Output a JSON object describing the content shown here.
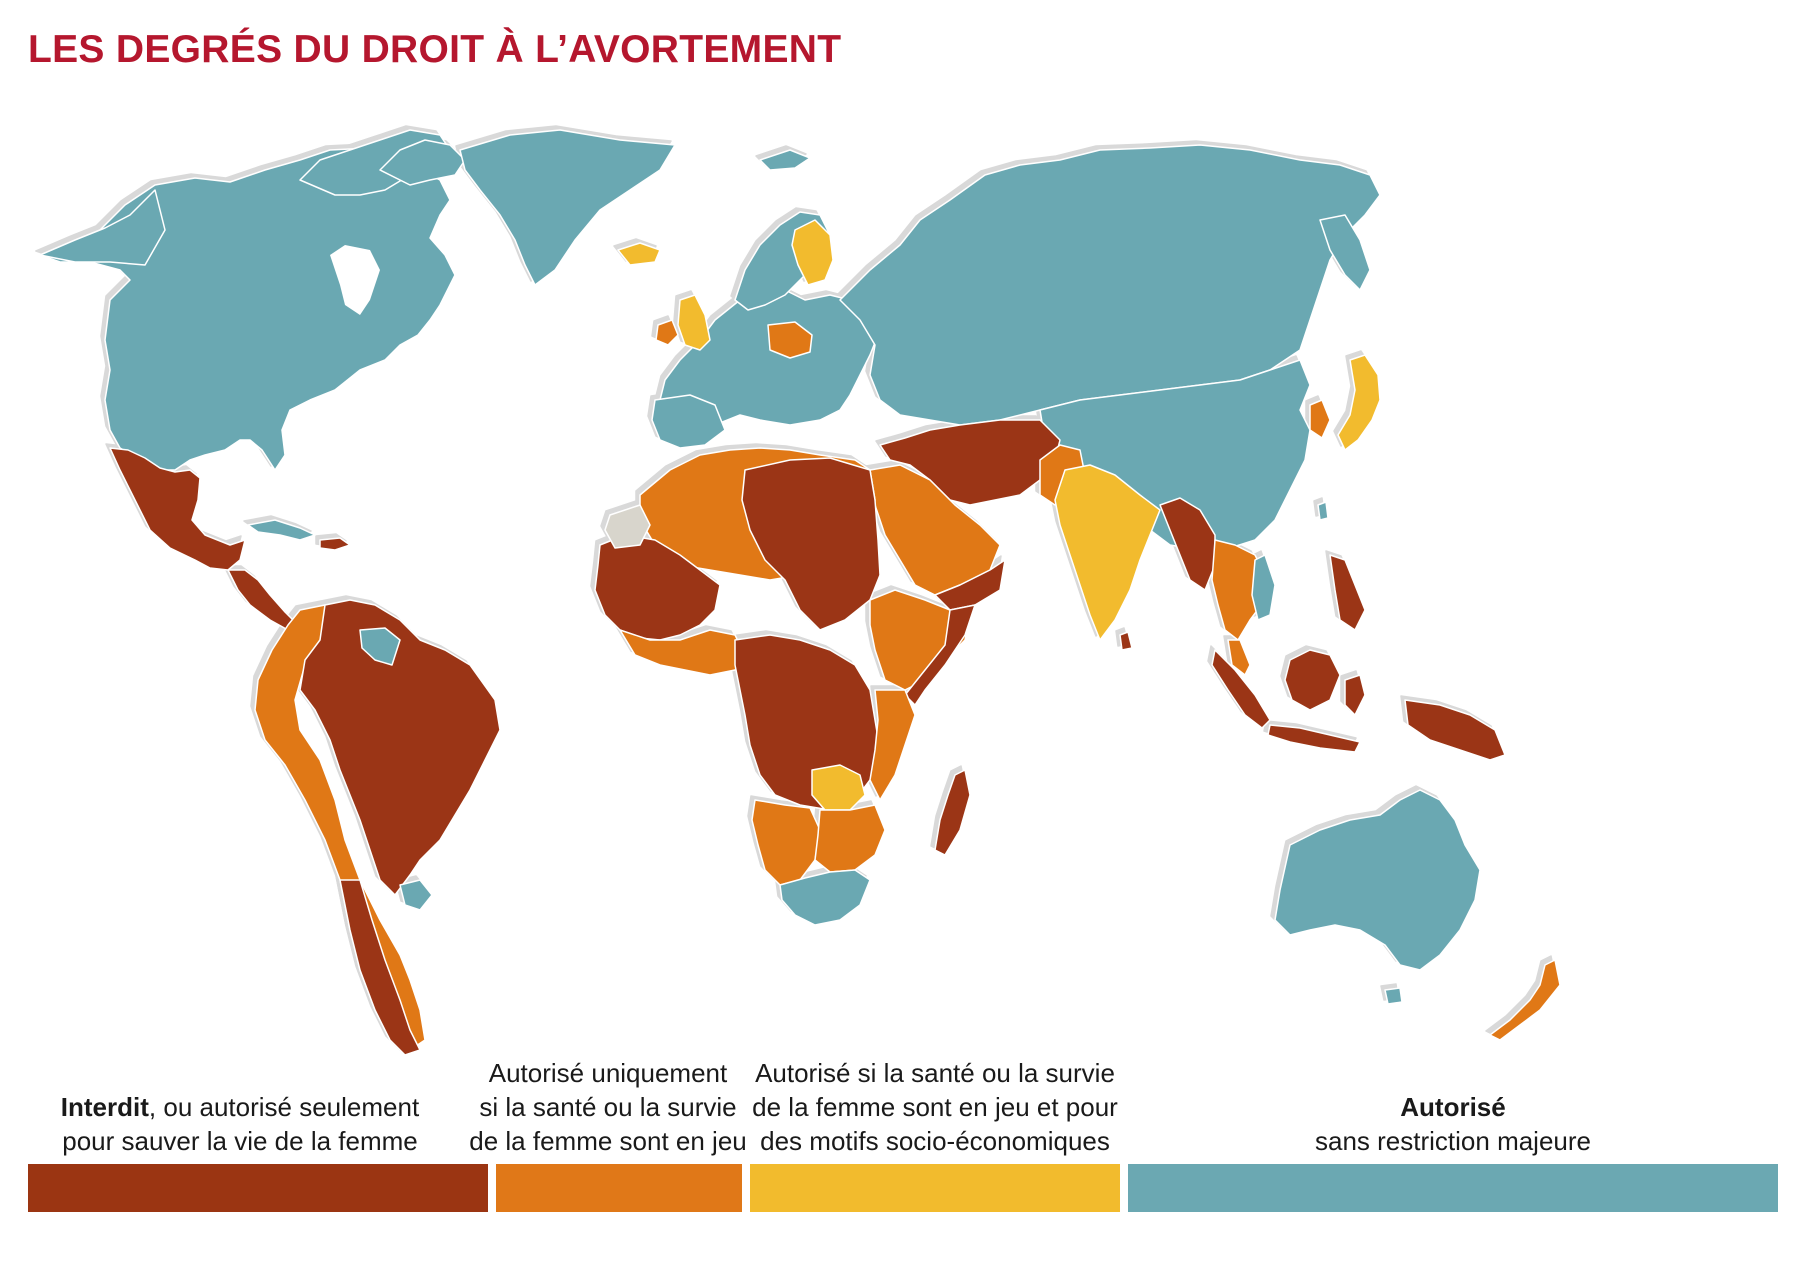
{
  "title": "LES DEGRÉS DU DROIT À L’AVORTEMENT",
  "legend": [
    {
      "id": "interdit",
      "bold": "Interdit",
      "text_after_bold": ", ou autorisé seulement",
      "line2": "pour sauver la vie de la femme",
      "color": "#9b3512"
    },
    {
      "id": "sante",
      "line1": "Autorisé uniquement",
      "line2": "si la santé ou la survie",
      "line3": "de la femme sont en jeu",
      "color": "#e07818"
    },
    {
      "id": "socio",
      "line1": "Autorisé si la santé ou la survie",
      "line2": "de la femme sont en jeu et pour",
      "line3": "des motifs socio-économiques",
      "color": "#f2bb2d"
    },
    {
      "id": "autorise",
      "bold": "Autorisé",
      "line2": "sans restriction majeure",
      "color": "#6ba8b2"
    }
  ],
  "colors": {
    "land_outline": "#ffffff",
    "shadow": "#e6e6e6",
    "no_data": "#d8d5cc"
  }
}
